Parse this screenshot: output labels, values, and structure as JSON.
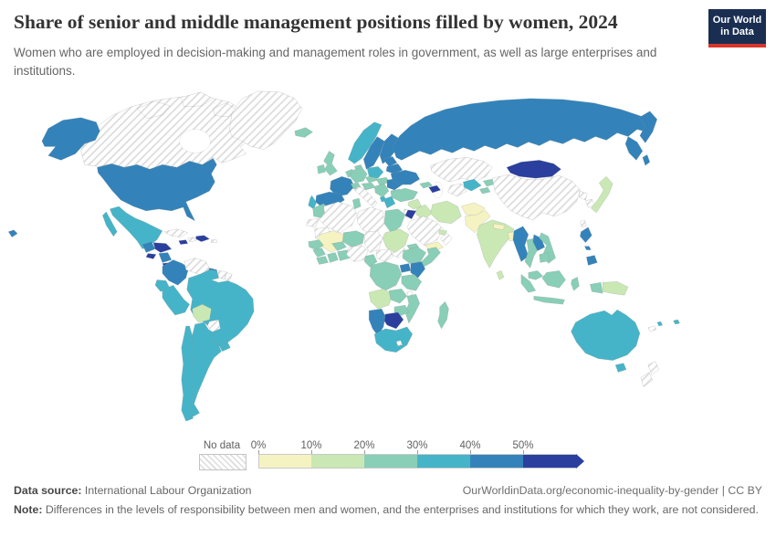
{
  "header": {
    "title": "Share of senior and middle management positions filled by women, 2024",
    "subtitle": "Women who are employed in decision-making and management roles in government, as well as large enterprises and institutions.",
    "logo": {
      "line1": "Our World",
      "line2": "in Data"
    }
  },
  "legend": {
    "no_data_label": "No data",
    "ticks": [
      "0%",
      "10%",
      "20%",
      "30%",
      "40%",
      "50%"
    ],
    "bins": [
      {
        "range": "0-10%",
        "color": "#f5f3c1"
      },
      {
        "range": "10-20%",
        "color": "#c9e8b4"
      },
      {
        "range": "20-30%",
        "color": "#89ceb6"
      },
      {
        "range": "30-40%",
        "color": "#46b4c8"
      },
      {
        "range": "40-50%",
        "color": "#3383ba"
      },
      {
        "range": "50%+",
        "color": "#2b3f9e"
      }
    ],
    "no_data_colors": {
      "line": "#dcdcdc",
      "background": "#ffffff"
    }
  },
  "footer": {
    "source_label": "Data source:",
    "source": "International Labour Organization",
    "attribution": "OurWorldinData.org/economic-inequality-by-gender | CC BY",
    "note_label": "Note:",
    "note": "Differences in the levels of responsibility between men and women, and the enterprises and institutions for which they work, are not considered."
  },
  "chart_data": {
    "type": "choropleth_world_map",
    "title": "Share of senior and middle management positions filled by women, 2024",
    "year": 2024,
    "unit": "% of senior and middle management positions",
    "legend_bins": [
      "0-10%",
      "10-20%",
      "20-30%",
      "30-40%",
      "40-50%",
      "50%+",
      "No data"
    ],
    "countries": {
      "Canada": "No data",
      "Greenland": "No data",
      "Cuba": "No data",
      "Puerto Rico": "No data",
      "Haiti": "No data",
      "Venezuela": "No data",
      "Suriname": "No data",
      "French Guiana": "No data",
      "Paraguay": "No data",
      "Italy": "No data",
      "Israel": "No data",
      "Algeria": "No data",
      "Libya": "No data",
      "Western Sahara": "No data",
      "Mauritania": "No data",
      "Chad": "No data",
      "Nigeria": "No data",
      "Central African Republic": "No data",
      "South Sudan": "No data",
      "Saudi Arabia": "No data",
      "Oman": "No data",
      "Turkmenistan": "No data",
      "Kazakhstan": "No data",
      "China": "No data",
      "North Korea": "No data",
      "South Korea": "No data",
      "Taiwan": "No data",
      "New Zealand": "No data",
      "New Caledonia": "No data",
      "Malawi": "No data",
      "Lesotho": "No data",
      "Mali": "0-10%",
      "Yemen": "0-10%",
      "Afghanistan": "0-10%",
      "Pakistan": "0-10%",
      "Nepal": "0-10%",
      "Bangladesh": "0-10%",
      "Japan": "10-20%",
      "India": "10-20%",
      "Sri Lanka": "10-20%",
      "Sudan": "10-20%",
      "Syria": "10-20%",
      "Iraq": "10-20%",
      "Iran": "10-20%",
      "United Arab Emirates": "10-20%",
      "Angola": "10-20%",
      "Bolivia": "10-20%",
      "Papua New Guinea": "10-20%",
      "Morocco": "20-30%",
      "Tunisia": "20-30%",
      "Niger": "20-30%",
      "Senegal": "20-30%",
      "Guinea": "20-30%",
      "Sierra Leone": "20-30%",
      "Ivory Coast": "20-30%",
      "Ghana": "20-30%",
      "Burkina Faso": "20-30%",
      "Cameroon": "20-30%",
      "Democratic Republic of Congo": "20-30%",
      "Tanzania": "20-30%",
      "Zambia": "20-30%",
      "Mozambique": "20-30%",
      "Zimbabwe": "20-30%",
      "Madagascar": "20-30%",
      "Ethiopia": "20-30%",
      "Somalia": "20-30%",
      "Eritrea": "20-30%",
      "Egypt": "20-30%",
      "Turkey": "20-30%",
      "Germany": "20-30%",
      "Denmark": "20-30%",
      "Netherlands": "20-30%",
      "Switzerland": "20-30%",
      "Czechia": "20-30%",
      "Austria": "20-30%",
      "Hungary": "20-30%",
      "Serbia": "20-30%",
      "Bulgaria": "20-30%",
      "United Kingdom": "20-30%",
      "Ireland": "20-30%",
      "Iceland": "20-30%",
      "Indonesia": "20-30%",
      "Malaysia": "20-30%",
      "Thailand": "20-30%",
      "Vietnam": "20-30%",
      "Cambodia": "20-30%",
      "Georgia": "20-30%",
      "Kyrgyzstan": "20-30%",
      "Tajikistan": "20-30%",
      "Mexico": "30-40%",
      "Brazil": "30-40%",
      "Peru": "30-40%",
      "Ecuador": "30-40%",
      "Chile": "30-40%",
      "Argentina": "30-40%",
      "Uruguay": "30-40%",
      "Australia": "30-40%",
      "Fiji": "30-40%",
      "Vanuatu": "30-40%",
      "South Africa": "30-40%",
      "Portugal": "30-40%",
      "Greece": "30-40%",
      "Albania": "30-40%",
      "Norway": "30-40%",
      "Poland": "30-40%",
      "Uzbekistan": "30-40%",
      "United States": "40-50%",
      "Russia": "40-50%",
      "France": "40-50%",
      "Spain": "40-50%",
      "Sweden": "40-50%",
      "Finland": "40-50%",
      "Baltic states": "40-50%",
      "Belarus": "40-50%",
      "Ukraine": "40-50%",
      "Romania": "40-50%",
      "Colombia": "40-50%",
      "Guyana": "40-50%",
      "Panama": "40-50%",
      "Nicaragua": "40-50%",
      "Guatemala": "40-50%",
      "Kenya": "40-50%",
      "Uganda": "40-50%",
      "Namibia": "40-50%",
      "Philippines": "40-50%",
      "Myanmar": "40-50%",
      "Laos": "40-50%",
      "Mongolia": "50%+",
      "Botswana": "50%+",
      "Jordan": "50%+",
      "Jamaica": "50%+",
      "Dominican Republic": "50%+",
      "Honduras": "50%+",
      "El Salvador": "50%+",
      "Costa Rica": "50%+",
      "Azerbaijan": "50%+"
    }
  }
}
